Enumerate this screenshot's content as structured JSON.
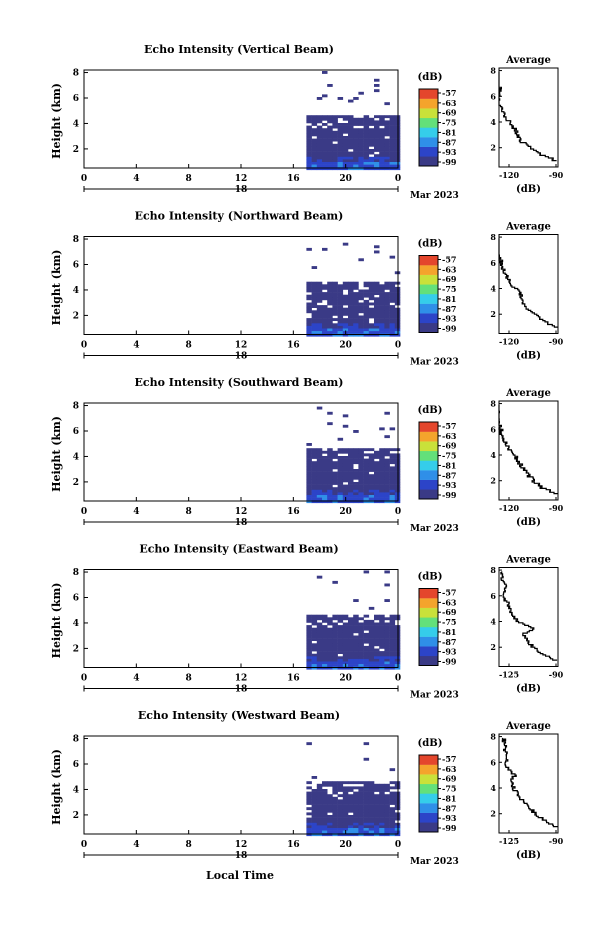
{
  "figure": {
    "xlabel": "Local Time",
    "date_label": "Mar 2023",
    "day_label": "18",
    "x_ticks": [
      "0",
      "4",
      "8",
      "12",
      "16",
      "20",
      "0"
    ],
    "y_label": "Height (km)",
    "y_ticks": [
      "2",
      "4",
      "6",
      "8"
    ],
    "colorbar_unit": "(dB)",
    "colorbar_ticks": [
      "-57",
      "-63",
      "-69",
      "-75",
      "-81",
      "-87",
      "-93",
      "-99"
    ],
    "avg_title": "Average",
    "avg_xlabel": "(dB)",
    "avg_y_ticks": [
      "2",
      "4",
      "6",
      "8"
    ]
  },
  "chart_data": [
    {
      "type": "heatmap",
      "title": "Echo Intensity (Vertical Beam)",
      "xlabel": "Local Time",
      "ylabel": "Height (km)",
      "x_range_hours": [
        0,
        24
      ],
      "y_range_km": [
        0.5,
        8.2
      ],
      "data_start_hour": 17,
      "colorbar_range_db": [
        -99,
        -57
      ],
      "profile": {
        "title": "Average",
        "xlabel": "(dB)",
        "x_ticks": [
          "-120",
          "-90"
        ],
        "xlim": [
          -120,
          -90
        ],
        "h": [
          1.0,
          1.5,
          2.0,
          2.5,
          3.0,
          3.5,
          4.0,
          4.5,
          5.0,
          5.5,
          6.0,
          6.5,
          7.0,
          7.5,
          8.0
        ],
        "db": [
          -90,
          -99,
          -104,
          -108,
          -110,
          -112,
          -114,
          -117,
          -118,
          -120,
          -121,
          -119,
          -121,
          -122,
          -121
        ]
      }
    },
    {
      "type": "heatmap",
      "title": "Echo Intensity (Northward Beam)",
      "xlabel": "Local Time",
      "ylabel": "Height (km)",
      "x_range_hours": [
        0,
        24
      ],
      "y_range_km": [
        0.5,
        8.2
      ],
      "data_start_hour": 17,
      "colorbar_range_db": [
        -99,
        -57
      ],
      "profile": {
        "title": "Average",
        "xlabel": "(dB)",
        "x_ticks": [
          "-120",
          "-90"
        ],
        "xlim": [
          -120,
          -90
        ],
        "h": [
          1.0,
          1.5,
          2.0,
          2.5,
          3.0,
          3.5,
          4.0,
          4.5,
          5.0,
          5.5,
          6.0,
          6.5,
          7.0,
          7.5,
          8.0
        ],
        "db": [
          -90,
          -97,
          -102,
          -106,
          -108,
          -109,
          -111,
          -114,
          -116,
          -118,
          -119,
          -120,
          -121,
          -121,
          -122
        ]
      }
    },
    {
      "type": "heatmap",
      "title": "Echo Intensity (Southward Beam)",
      "xlabel": "Local Time",
      "ylabel": "Height (km)",
      "x_range_hours": [
        0,
        24
      ],
      "y_range_km": [
        0.5,
        8.2
      ],
      "data_start_hour": 17,
      "colorbar_range_db": [
        -99,
        -57
      ],
      "profile": {
        "title": "Average",
        "xlabel": "(dB)",
        "x_ticks": [
          "-120",
          "-90"
        ],
        "xlim": [
          -120,
          -90
        ],
        "h": [
          1.0,
          1.5,
          2.0,
          2.5,
          3.0,
          3.5,
          4.0,
          4.5,
          5.0,
          5.5,
          6.0,
          6.5,
          7.0,
          7.5,
          8.0
        ],
        "db": [
          -90,
          -98,
          -102,
          -105,
          -108,
          -110,
          -112,
          -115,
          -117,
          -118,
          -119,
          -120,
          -121,
          -121,
          -122
        ]
      }
    },
    {
      "type": "heatmap",
      "title": "Echo Intensity (Eastward Beam)",
      "xlabel": "Local Time",
      "ylabel": "Height (km)",
      "x_range_hours": [
        0,
        24
      ],
      "y_range_km": [
        0.5,
        8.2
      ],
      "data_start_hour": 17,
      "colorbar_range_db": [
        -99,
        -57
      ],
      "profile": {
        "title": "Average",
        "xlabel": "(dB)",
        "x_ticks": [
          "-125",
          "-90"
        ],
        "xlim": [
          -125,
          -90
        ],
        "h": [
          1.0,
          1.5,
          2.0,
          2.5,
          3.0,
          3.5,
          4.0,
          4.5,
          5.0,
          5.5,
          6.0,
          6.5,
          7.0,
          7.5,
          8.0
        ],
        "db": [
          -91,
          -99,
          -104,
          -108,
          -111,
          -104,
          -114,
          -117,
          -119,
          -120,
          -122,
          -121,
          -122,
          -123,
          -124
        ]
      }
    },
    {
      "type": "heatmap",
      "title": "Echo Intensity (Westward Beam)",
      "xlabel": "Local Time",
      "ylabel": "Height (km)",
      "x_range_hours": [
        0,
        24
      ],
      "y_range_km": [
        0.5,
        8.2
      ],
      "data_start_hour": 17,
      "colorbar_range_db": [
        -99,
        -57
      ],
      "profile": {
        "title": "Average",
        "xlabel": "(dB)",
        "x_ticks": [
          "-125",
          "-90"
        ],
        "xlim": [
          -125,
          -90
        ],
        "h": [
          1.0,
          1.5,
          2.0,
          2.5,
          3.0,
          3.5,
          4.0,
          4.5,
          5.0,
          5.5,
          6.0,
          6.5,
          7.0,
          7.5,
          8.0
        ],
        "db": [
          -90,
          -98,
          -103,
          -107,
          -110,
          -114,
          -116,
          -118,
          -116,
          -119,
          -121,
          -120,
          -122,
          -121,
          -123
        ]
      }
    }
  ],
  "colors": {
    "ramp": [
      "#3a3a86",
      "#2c44c8",
      "#2f8fe8",
      "#35cdea",
      "#63e07a",
      "#c9e13a",
      "#f4a42c",
      "#e4462c"
    ]
  }
}
